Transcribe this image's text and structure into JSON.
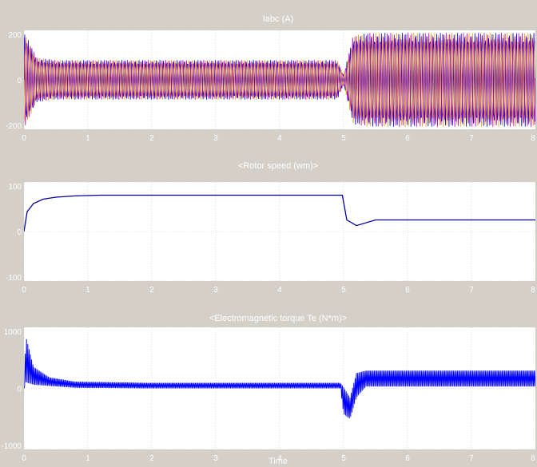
{
  "chart_data": [
    {
      "type": "line",
      "title": "Iabc (A)",
      "xlim": [
        0,
        8
      ],
      "ylim": [
        -200,
        200
      ],
      "xticks": [
        "0",
        "1",
        "2",
        "3",
        "4",
        "5",
        "6",
        "7",
        "8"
      ],
      "yticks": [
        "200",
        "0",
        "-200"
      ],
      "grid": true,
      "series": [
        {
          "color": "#0000ff",
          "phase_deg": 0
        },
        {
          "color": "#c000c0",
          "phase_deg": 120
        },
        {
          "color": "#e0a000",
          "phase_deg": 240
        }
      ],
      "envelope": [
        {
          "t": 0.0,
          "amp": 195
        },
        {
          "t": 0.05,
          "amp": 170
        },
        {
          "t": 0.2,
          "amp": 90
        },
        {
          "t": 0.5,
          "amp": 80
        },
        {
          "t": 4.9,
          "amp": 80
        },
        {
          "t": 5.0,
          "amp": 20
        },
        {
          "t": 5.15,
          "amp": 180
        },
        {
          "t": 5.4,
          "amp": 190
        },
        {
          "t": 8.0,
          "amp": 190
        }
      ]
    },
    {
      "type": "line",
      "title": "<Rotor speed (wm)>",
      "xlim": [
        0,
        8
      ],
      "ylim": [
        -150,
        150
      ],
      "xticks": [
        "0",
        "1",
        "2",
        "3",
        "4",
        "5",
        "6",
        "7",
        "8"
      ],
      "yticks": [
        "100",
        "0",
        "-100"
      ],
      "grid": true,
      "series": [
        {
          "color": "#0000a0",
          "x": [
            0,
            0.05,
            0.15,
            0.3,
            0.5,
            0.8,
            1.2,
            2.0,
            3.0,
            4.0,
            4.98,
            5.05,
            5.2,
            5.5,
            6.0,
            7.0,
            8.0
          ],
          "y": [
            0,
            60,
            85,
            98,
            104,
            108,
            110,
            110,
            110,
            110,
            110,
            35,
            18,
            35,
            35,
            35,
            35
          ]
        }
      ]
    },
    {
      "type": "line",
      "title": "<Electromagnetic torque Te (N*m)>",
      "xlim": [
        0,
        8
      ],
      "ylim": [
        -1000,
        1000
      ],
      "xticks": [
        "0",
        "1",
        "2",
        "3",
        "4",
        "5",
        "6",
        "7",
        "8"
      ],
      "yticks": [
        "1000",
        "0",
        "-1000"
      ],
      "grid": true,
      "series": [
        {
          "color": "#0000ff",
          "envelope": [
            {
              "t": 0.0,
              "lo": 0,
              "hi": 0
            },
            {
              "t": 0.03,
              "lo": 100,
              "hi": 850
            },
            {
              "t": 0.15,
              "lo": 60,
              "hi": 350
            },
            {
              "t": 0.4,
              "lo": 40,
              "hi": 180
            },
            {
              "t": 0.8,
              "lo": 10,
              "hi": 110
            },
            {
              "t": 2.0,
              "lo": 0,
              "hi": 90
            },
            {
              "t": 4.95,
              "lo": 0,
              "hi": 90
            },
            {
              "t": 5.0,
              "lo": -420,
              "hi": 20
            },
            {
              "t": 5.1,
              "lo": -500,
              "hi": -150
            },
            {
              "t": 5.2,
              "lo": -150,
              "hi": 250
            },
            {
              "t": 5.35,
              "lo": 30,
              "hi": 290
            },
            {
              "t": 8.0,
              "lo": 30,
              "hi": 290
            }
          ]
        }
      ]
    }
  ],
  "xaxis_label": "Time"
}
